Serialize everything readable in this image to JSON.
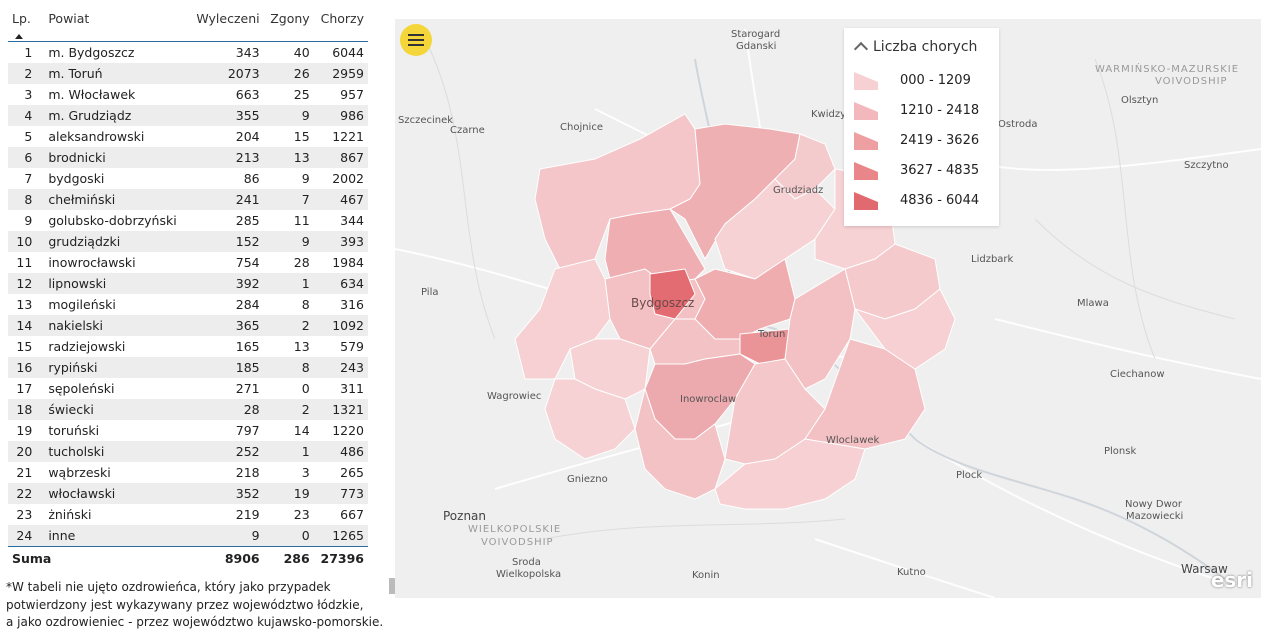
{
  "table": {
    "headers": {
      "lp": "Lp.",
      "powiat": "Powiat",
      "wyleczeni": "Wyleczeni",
      "zgony": "Zgony",
      "chorzy": "Chorzy"
    },
    "rows": [
      {
        "lp": "1",
        "powiat": "m. Bydgoszcz",
        "wyleczeni": "343",
        "zgony": "40",
        "chorzy": "6044"
      },
      {
        "lp": "2",
        "powiat": "m. Toruń",
        "wyleczeni": "2073",
        "zgony": "26",
        "chorzy": "2959"
      },
      {
        "lp": "3",
        "powiat": "m. Włocławek",
        "wyleczeni": "663",
        "zgony": "25",
        "chorzy": "957"
      },
      {
        "lp": "4",
        "powiat": "m. Grudziądz",
        "wyleczeni": "355",
        "zgony": "9",
        "chorzy": "986"
      },
      {
        "lp": "5",
        "powiat": "aleksandrowski",
        "wyleczeni": "204",
        "zgony": "15",
        "chorzy": "1221"
      },
      {
        "lp": "6",
        "powiat": "brodnicki",
        "wyleczeni": "213",
        "zgony": "13",
        "chorzy": "867"
      },
      {
        "lp": "7",
        "powiat": "bydgoski",
        "wyleczeni": "86",
        "zgony": "9",
        "chorzy": "2002"
      },
      {
        "lp": "8",
        "powiat": "chełmiński",
        "wyleczeni": "241",
        "zgony": "7",
        "chorzy": "467"
      },
      {
        "lp": "9",
        "powiat": "golubsko-dobrzyński",
        "wyleczeni": "285",
        "zgony": "11",
        "chorzy": "344"
      },
      {
        "lp": "10",
        "powiat": "grudziądzki",
        "wyleczeni": "152",
        "zgony": "9",
        "chorzy": "393"
      },
      {
        "lp": "11",
        "powiat": "inowrocławski",
        "wyleczeni": "754",
        "zgony": "28",
        "chorzy": "1984"
      },
      {
        "lp": "12",
        "powiat": "lipnowski",
        "wyleczeni": "392",
        "zgony": "1",
        "chorzy": "634"
      },
      {
        "lp": "13",
        "powiat": "mogileński",
        "wyleczeni": "284",
        "zgony": "8",
        "chorzy": "316"
      },
      {
        "lp": "14",
        "powiat": "nakielski",
        "wyleczeni": "365",
        "zgony": "2",
        "chorzy": "1092"
      },
      {
        "lp": "15",
        "powiat": "radziejowski",
        "wyleczeni": "165",
        "zgony": "13",
        "chorzy": "579"
      },
      {
        "lp": "16",
        "powiat": "rypiński",
        "wyleczeni": "185",
        "zgony": "8",
        "chorzy": "243"
      },
      {
        "lp": "17",
        "powiat": "sępoleński",
        "wyleczeni": "271",
        "zgony": "0",
        "chorzy": "311"
      },
      {
        "lp": "18",
        "powiat": "świecki",
        "wyleczeni": "28",
        "zgony": "2",
        "chorzy": "1321"
      },
      {
        "lp": "19",
        "powiat": "toruński",
        "wyleczeni": "797",
        "zgony": "14",
        "chorzy": "1220"
      },
      {
        "lp": "20",
        "powiat": "tucholski",
        "wyleczeni": "252",
        "zgony": "1",
        "chorzy": "486"
      },
      {
        "lp": "21",
        "powiat": "wąbrzeski",
        "wyleczeni": "218",
        "zgony": "3",
        "chorzy": "265"
      },
      {
        "lp": "22",
        "powiat": "włocławski",
        "wyleczeni": "352",
        "zgony": "19",
        "chorzy": "773"
      },
      {
        "lp": "23",
        "powiat": "żniński",
        "wyleczeni": "219",
        "zgony": "23",
        "chorzy": "667"
      },
      {
        "lp": "24",
        "powiat": "inne",
        "wyleczeni": "9",
        "zgony": "0",
        "chorzy": "1265"
      }
    ],
    "footer": {
      "label": "Suma",
      "wyleczeni": "8906",
      "zgony": "286",
      "chorzy": "27396"
    }
  },
  "footnote": {
    "line1": "*W tabeli nie ujęto ozdrowieńca, który jako przypadek",
    "line2": "potwierdzony jest wykazywany przez województwo łódzkie,",
    "line3": "a jako ozdrowieniec - przez województwo kujawsko-pomorskie."
  },
  "legend": {
    "title": "Liczba chorych",
    "classes": [
      {
        "label": "000 - 1209",
        "color": "#f6d0d2"
      },
      {
        "label": "1210 - 2418",
        "color": "#f2b8bb"
      },
      {
        "label": "2419 - 3626",
        "color": "#ee9fa2"
      },
      {
        "label": "3627 - 4835",
        "color": "#e9868a"
      },
      {
        "label": "4836 - 6044",
        "color": "#e06a6f"
      }
    ]
  },
  "map_labels": {
    "starogard": "Starogard",
    "gdanski": "Gdanski",
    "warminsko1": "WARMIŃSKO-MAZURSKIE",
    "warminsko2": "VOIVODSHIP",
    "olsztyn": "Olsztyn",
    "szczecinek": "Szczecinek",
    "czarne": "Czarne",
    "chojnice": "Chojnice",
    "kwidzyn": "Kwidzy",
    "ostroda": "Ostroda",
    "szczytno": "Szczytno",
    "grudziadz": "Grudziadz",
    "lidzbark": "Lidzbark",
    "pila": "Pila",
    "bydgoszcz": "Bydgoszcz",
    "mlawa": "Mlawa",
    "torun": "Torun",
    "wagrowiec": "Wagrowiec",
    "inowroclaw": "Inowroclaw",
    "ciechanow": "Ciechanow",
    "wloclawek": "Wloclawek",
    "plonsk": "Plonsk",
    "gniezno": "Gniezno",
    "plock": "Plock",
    "poznan": "Poznan",
    "wielkopolskie1": "WIELKOPOLSKIE",
    "wielkopolskie2": "VOIVODSHIP",
    "nowydwor1": "Nowy Dwor",
    "nowydwor2": "Mazowiecki",
    "sroda1": "Sroda",
    "sroda2": "Wielkopolska",
    "konin": "Konin",
    "kutno": "Kutno",
    "warsaw": "Warsaw",
    "esri": "esri"
  },
  "colors": {
    "accent": "#2b6a9c",
    "menu": "#f5d63a"
  }
}
